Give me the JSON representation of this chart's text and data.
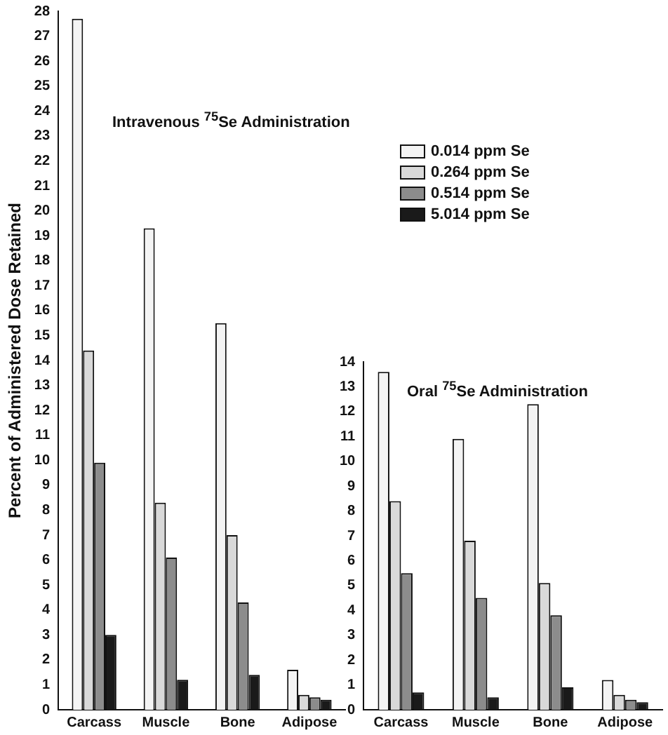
{
  "chart_data": [
    {
      "type": "bar",
      "title": "Intravenous $^{75}$Se Administration",
      "ylabel": "Percent of Administered Dose Retained",
      "categories": [
        "Carcass",
        "Muscle",
        "Bone",
        "Adipose"
      ],
      "series": [
        {
          "name": "0.014 ppm Se",
          "color": "#f4f4f4",
          "values": [
            27.7,
            19.3,
            15.5,
            1.6
          ]
        },
        {
          "name": "0.264 ppm Se",
          "color": "#d9d9d9",
          "values": [
            14.4,
            8.3,
            7.0,
            0.6
          ]
        },
        {
          "name": "0.514 ppm Se",
          "color": "#8c8c8c",
          "values": [
            9.9,
            6.1,
            4.3,
            0.5
          ]
        },
        {
          "name": "5.014 ppm Se",
          "color": "#1a1a1a",
          "values": [
            3.0,
            1.2,
            1.4,
            0.4
          ]
        }
      ],
      "ylim": [
        0,
        28
      ],
      "yticks": [
        0,
        1,
        2,
        3,
        4,
        5,
        6,
        7,
        8,
        9,
        10,
        11,
        12,
        13,
        14,
        15,
        16,
        17,
        18,
        19,
        20,
        21,
        22,
        23,
        24,
        25,
        26,
        27,
        28
      ],
      "grid": false,
      "legend": "top right"
    },
    {
      "type": "bar",
      "title": "Oral $^{75}$Se Administration",
      "categories": [
        "Carcass",
        "Muscle",
        "Bone",
        "Adipose"
      ],
      "series": [
        {
          "color": "#f4f4f4",
          "values": [
            13.6,
            10.9,
            12.3,
            1.2
          ]
        },
        {
          "color": "#d9d9d9",
          "values": [
            8.4,
            6.8,
            5.1,
            0.6
          ]
        },
        {
          "color": "#8c8c8c",
          "values": [
            5.5,
            4.5,
            3.8,
            0.4
          ]
        },
        {
          "color": "#1a1a1a",
          "values": [
            0.7,
            0.5,
            0.9,
            0.3
          ]
        }
      ],
      "ylim": [
        0,
        14
      ],
      "yticks": [
        0,
        1,
        2,
        3,
        4,
        5,
        6,
        7,
        8,
        9,
        10,
        11,
        12,
        13,
        14
      ],
      "grid": false,
      "legend": false
    }
  ]
}
